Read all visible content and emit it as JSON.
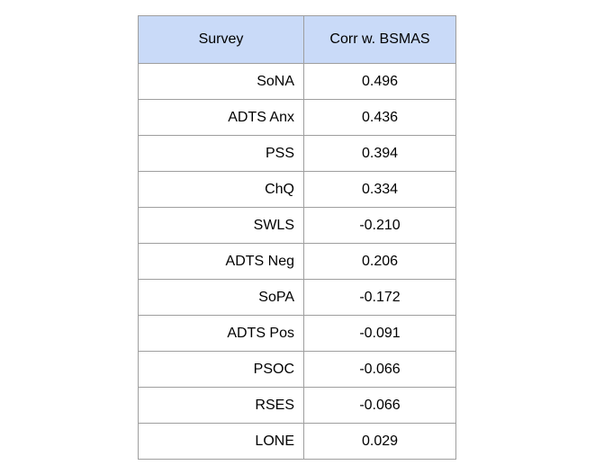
{
  "table": {
    "headers": [
      "Survey",
      "Corr w. BSMAS"
    ],
    "rows": [
      {
        "survey": "SoNA",
        "corr": "0.496"
      },
      {
        "survey": "ADTS Anx",
        "corr": "0.436"
      },
      {
        "survey": "PSS",
        "corr": "0.394"
      },
      {
        "survey": "ChQ",
        "corr": "0.334"
      },
      {
        "survey": "SWLS",
        "corr": "-0.210"
      },
      {
        "survey": "ADTS Neg",
        "corr": "0.206"
      },
      {
        "survey": "SoPA",
        "corr": "-0.172"
      },
      {
        "survey": "ADTS Pos",
        "corr": "-0.091"
      },
      {
        "survey": "PSOC",
        "corr": "-0.066"
      },
      {
        "survey": "RSES",
        "corr": "-0.066"
      },
      {
        "survey": "LONE",
        "corr": "0.029"
      }
    ]
  },
  "colors": {
    "header_background": "#c9daf8",
    "border": "#9e9e9e"
  }
}
